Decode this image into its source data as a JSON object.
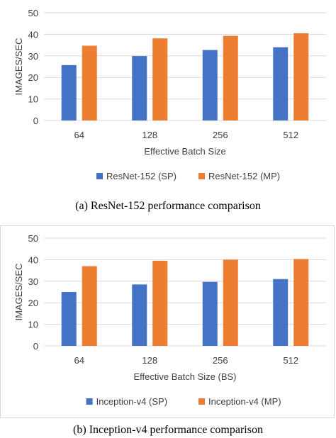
{
  "chart_data": [
    {
      "type": "bar",
      "categories": [
        "64",
        "128",
        "256",
        "512"
      ],
      "series": [
        {
          "name": "ResNet-152 (SP)",
          "values": [
            25.7,
            29.9,
            32.7,
            34.0
          ]
        },
        {
          "name": "ResNet-152 (MP)",
          "values": [
            34.7,
            38.1,
            39.3,
            40.5
          ]
        }
      ],
      "xlabel": "Effective Batch Size",
      "ylabel": "IMAGES/SEC",
      "ylim": [
        0,
        50
      ],
      "yticks": [
        "0",
        "10",
        "20",
        "30",
        "40",
        "50"
      ],
      "grid": true,
      "legend_position": "bottom",
      "caption": "(a)  ResNet-152 performance comparison"
    },
    {
      "type": "bar",
      "categories": [
        "64",
        "128",
        "256",
        "512"
      ],
      "series": [
        {
          "name": "Inception-v4 (SP)",
          "values": [
            25.0,
            28.5,
            29.7,
            31.0
          ]
        },
        {
          "name": "Inception-v4 (MP)",
          "values": [
            37.0,
            39.5,
            40.0,
            40.3
          ]
        }
      ],
      "xlabel": "Effective Batch Size (BS)",
      "ylabel": "IMAGES/SEC",
      "ylim": [
        0,
        50
      ],
      "yticks": [
        "0",
        "10",
        "20",
        "30",
        "40",
        "50"
      ],
      "grid": true,
      "legend_position": "bottom",
      "caption": "(b)  Inception-v4 performance comparison"
    }
  ],
  "colors": {
    "sp": "#4472c4",
    "mp": "#ed7d31",
    "grid": "#d9d9d9",
    "text": "#404040"
  }
}
